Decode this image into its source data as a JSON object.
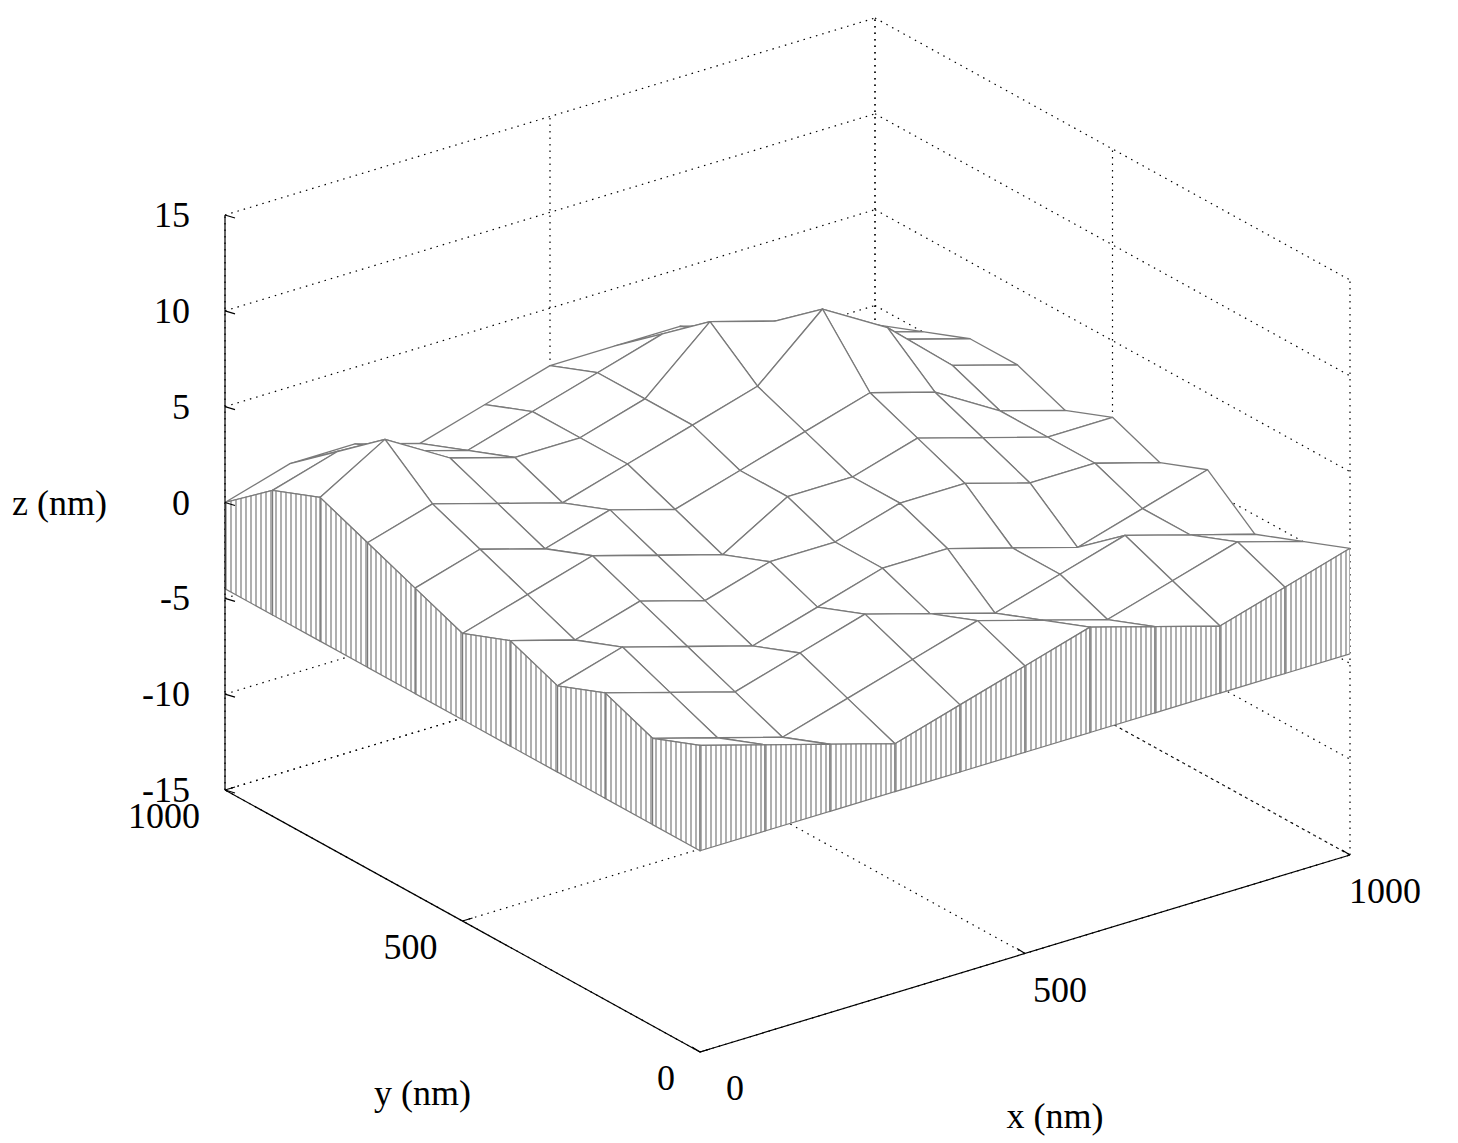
{
  "chart_data": {
    "type": "surface",
    "x_label": "x (nm)",
    "y_label": "y (nm)",
    "z_label": "z (nm)",
    "xlim": [
      0,
      1000
    ],
    "ylim": [
      0,
      1000
    ],
    "zlim": [
      -15,
      15
    ],
    "xticks": [
      0,
      500,
      1000
    ],
    "yticks": [
      0,
      500,
      1000
    ],
    "zticks": [
      -15,
      -10,
      -5,
      0,
      5,
      10,
      15
    ],
    "grid": true,
    "color": "#7a7a7a",
    "curtain_level": -4.5,
    "x": [
      0,
      100,
      200,
      300,
      400,
      500,
      600,
      700,
      800,
      900,
      1000
    ],
    "y": [
      0,
      100,
      200,
      300,
      400,
      500,
      600,
      700,
      800,
      900,
      1000
    ],
    "z": [
      [
        1,
        0,
        -1,
        -2,
        -1,
        0,
        1,
        0,
        -1,
        0,
        1
      ],
      [
        0,
        -1,
        -2,
        -1,
        0,
        1,
        0,
        -1,
        0,
        1,
        0
      ],
      [
        1,
        0,
        -1,
        0,
        1,
        0,
        -1,
        0,
        1,
        0,
        -1
      ],
      [
        0,
        1,
        0,
        -1,
        0,
        1,
        1,
        0,
        -1,
        0,
        1
      ],
      [
        1,
        0,
        1,
        0,
        1,
        1,
        2,
        2,
        1,
        1,
        0
      ],
      [
        0,
        1,
        2,
        1,
        0,
        2,
        2,
        3,
        2,
        1,
        1
      ],
      [
        1,
        2,
        1,
        2,
        1,
        2,
        3,
        4,
        3,
        1,
        0
      ],
      [
        2,
        3,
        2,
        1,
        2,
        3,
        4,
        7,
        5,
        2,
        1
      ],
      [
        3,
        5,
        3,
        2,
        2,
        3,
        6,
        5,
        4,
        2,
        1
      ],
      [
        2,
        3,
        2,
        1,
        2,
        3,
        4,
        3,
        2,
        1,
        0
      ],
      [
        0,
        1,
        1,
        0,
        1,
        2,
        2,
        2,
        1,
        0,
        -1
      ]
    ]
  }
}
